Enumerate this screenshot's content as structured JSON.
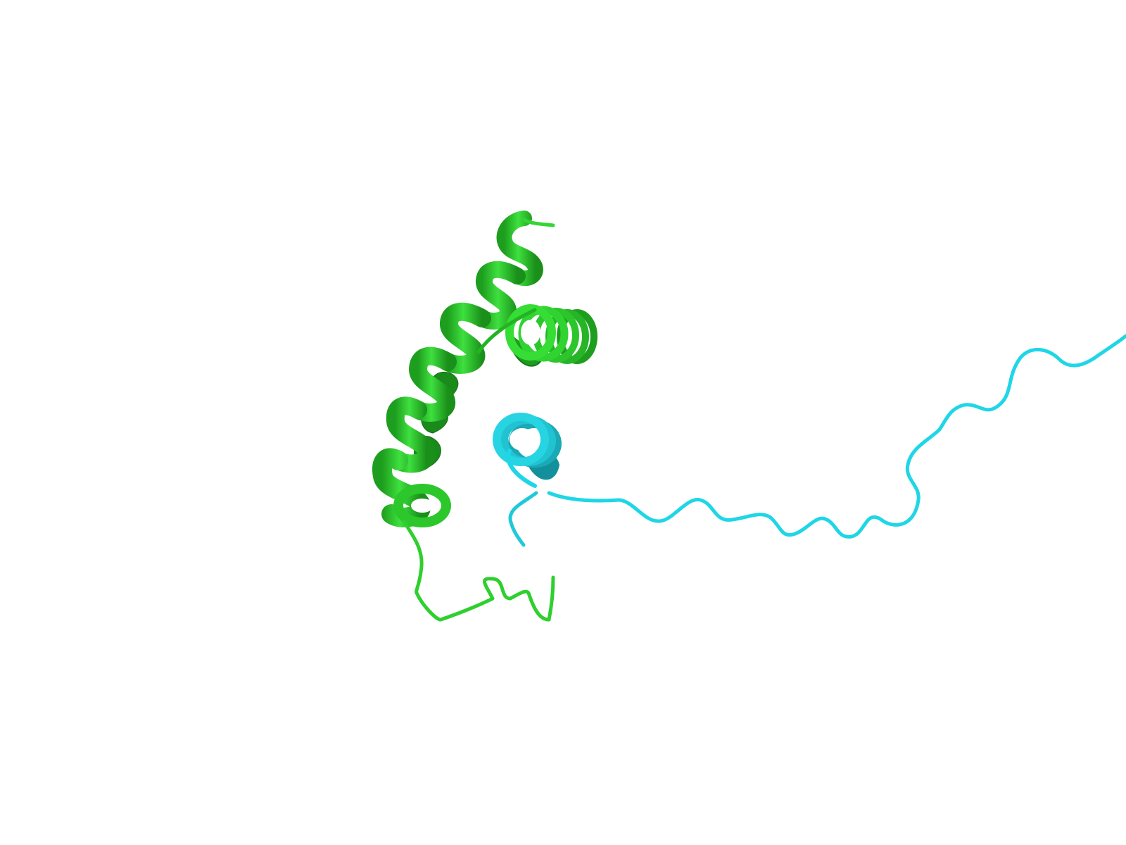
{
  "scene": {
    "background": "#ffffff",
    "render_style": "cartoon ribbon",
    "chains": [
      {
        "id": "chain-green",
        "color": "#2fd32f",
        "color_shade": "#1e9e1e",
        "color_highlight": "#6ef06e",
        "secondary_structure": [
          "helix",
          "helix",
          "coil"
        ]
      },
      {
        "id": "chain-cyan",
        "color": "#1fd6e6",
        "color_shade": "#12909c",
        "color_highlight": "#7ff0f8",
        "secondary_structure": [
          "helix",
          "coil"
        ]
      }
    ]
  }
}
